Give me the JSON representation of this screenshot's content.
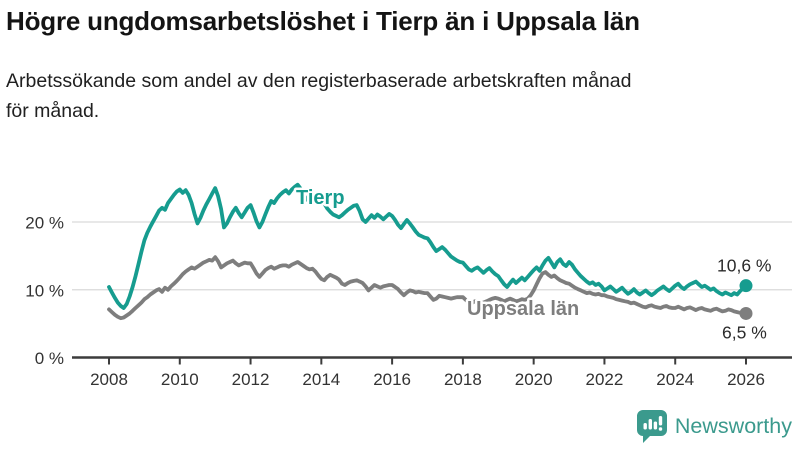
{
  "header": {
    "title": "Högre ungdomsarbetslöshet i Tierp än i Uppsala län",
    "subtitle": "Arbetssökande som andel av den registerbaserade arbetskraften månad\nför månad."
  },
  "chart_data": {
    "type": "line",
    "title": "Högre ungdomsarbetslöshet i Tierp än i Uppsala län",
    "subtitle": "Arbetssökande som andel av den registerbaserade arbetskraften månad för månad.",
    "x_unit": "month",
    "x_start": "2008-01",
    "x_end": "2026-01",
    "xticks": [
      "2008",
      "2010",
      "2012",
      "2014",
      "2016",
      "2018",
      "2020",
      "2022",
      "2024",
      "2026"
    ],
    "yticks": [
      {
        "value": 0,
        "label": "0 %"
      },
      {
        "value": 10,
        "label": "10 %"
      },
      {
        "value": 20,
        "label": "20 %"
      }
    ],
    "ylim": [
      0,
      28
    ],
    "grid": "horizontal",
    "legend_position": "inline-labels",
    "series": [
      {
        "name": "Tierp",
        "color": "#169c8f",
        "end_label": "10,6 %",
        "end_value": 10.6,
        "values": [
          10.4,
          9.6,
          8.8,
          8.1,
          7.6,
          7.3,
          7.9,
          9.0,
          10.4,
          12.0,
          13.8,
          15.6,
          17.3,
          18.4,
          19.3,
          20.1,
          20.9,
          21.7,
          22.1,
          21.8,
          22.8,
          23.4,
          24.0,
          24.5,
          24.8,
          24.3,
          24.7,
          24.0,
          22.8,
          21.2,
          19.8,
          20.6,
          21.7,
          22.6,
          23.4,
          24.2,
          25.0,
          23.8,
          21.9,
          19.2,
          19.8,
          20.7,
          21.5,
          22.1,
          21.3,
          20.7,
          21.4,
          22.1,
          22.5,
          21.4,
          20.1,
          19.2,
          20.0,
          21.1,
          22.2,
          23.1,
          22.8,
          23.5,
          24.0,
          24.4,
          24.7,
          24.2,
          24.8,
          25.2,
          25.5,
          24.9,
          24.0,
          23.3,
          23.8,
          23.3,
          22.8,
          23.2,
          23.4,
          22.7,
          22.0,
          21.5,
          21.1,
          20.9,
          20.7,
          21.0,
          21.4,
          21.8,
          22.1,
          22.4,
          22.5,
          21.6,
          20.4,
          20.0,
          20.5,
          21.0,
          20.6,
          21.1,
          20.8,
          20.4,
          20.8,
          21.2,
          20.9,
          20.3,
          19.6,
          19.1,
          19.7,
          20.3,
          19.8,
          19.2,
          18.6,
          18.1,
          17.9,
          17.7,
          17.6,
          17.0,
          16.3,
          15.7,
          16.0,
          16.3,
          15.9,
          15.4,
          14.9,
          14.6,
          14.3,
          14.1,
          14.0,
          13.5,
          13.0,
          12.8,
          13.1,
          13.3,
          12.9,
          12.5,
          12.9,
          13.2,
          12.7,
          12.3,
          12.0,
          11.4,
          10.8,
          10.4,
          11.0,
          11.5,
          11.0,
          11.4,
          11.8,
          11.4,
          11.9,
          12.4,
          12.9,
          13.3,
          12.8,
          13.6,
          14.3,
          14.7,
          14.0,
          13.3,
          14.1,
          14.5,
          13.8,
          13.5,
          14.1,
          13.7,
          13.0,
          12.5,
          12.0,
          11.6,
          11.2,
          10.9,
          11.1,
          10.7,
          10.9,
          10.5,
          9.9,
          10.2,
          10.5,
          10.1,
          9.7,
          10.0,
          10.3,
          9.8,
          9.4,
          9.7,
          10.1,
          9.6,
          9.3,
          9.6,
          9.9,
          9.5,
          9.2,
          9.5,
          9.9,
          10.2,
          10.5,
          10.1,
          9.8,
          10.2,
          10.6,
          10.9,
          10.4,
          10.1,
          10.5,
          10.8,
          11.0,
          11.2,
          10.8,
          10.4,
          10.6,
          10.3,
          10.0,
          10.2,
          9.8,
          9.5,
          9.3,
          9.6,
          9.4,
          9.2,
          9.5,
          9.3,
          9.8,
          10.2,
          10.6
        ]
      },
      {
        "name": "Uppsala län",
        "color": "#7e7e7e",
        "end_label": "6,5 %",
        "end_value": 6.5,
        "values": [
          7.1,
          6.7,
          6.3,
          6.0,
          5.8,
          5.9,
          6.2,
          6.5,
          6.9,
          7.3,
          7.7,
          8.1,
          8.6,
          8.9,
          9.3,
          9.6,
          9.9,
          10.1,
          9.7,
          10.3,
          10.0,
          10.5,
          10.9,
          11.3,
          11.8,
          12.3,
          12.7,
          13.0,
          13.3,
          13.1,
          13.4,
          13.7,
          14.0,
          14.2,
          14.4,
          14.3,
          14.8,
          14.2,
          13.3,
          13.6,
          13.9,
          14.1,
          14.3,
          13.9,
          13.6,
          13.8,
          14.0,
          13.9,
          13.9,
          13.2,
          12.4,
          11.9,
          12.4,
          12.9,
          13.2,
          13.4,
          13.1,
          13.3,
          13.5,
          13.6,
          13.6,
          13.4,
          13.7,
          13.9,
          14.1,
          13.8,
          13.5,
          13.2,
          13.0,
          13.1,
          12.7,
          12.1,
          11.6,
          11.4,
          11.9,
          12.2,
          12.0,
          11.8,
          11.5,
          10.9,
          10.7,
          11.0,
          11.2,
          11.3,
          11.4,
          11.2,
          11.0,
          10.5,
          9.9,
          10.3,
          10.7,
          10.5,
          10.3,
          10.5,
          10.6,
          10.7,
          10.7,
          10.4,
          10.1,
          9.6,
          9.2,
          9.6,
          9.9,
          9.8,
          9.6,
          9.7,
          9.6,
          9.5,
          9.5,
          9.0,
          8.5,
          8.7,
          9.1,
          9.0,
          8.9,
          8.8,
          8.7,
          8.8,
          8.9,
          8.9,
          8.9,
          8.5,
          8.1,
          8.0,
          8.3,
          8.4,
          8.2,
          8.1,
          8.3,
          8.5,
          8.7,
          8.8,
          8.7,
          8.5,
          8.3,
          8.5,
          8.7,
          8.5,
          8.3,
          8.4,
          8.6,
          8.5,
          8.7,
          9.2,
          9.9,
          10.8,
          11.7,
          12.4,
          12.6,
          12.2,
          11.9,
          12.1,
          11.7,
          11.4,
          11.2,
          11.0,
          10.9,
          10.6,
          10.3,
          10.1,
          9.9,
          9.7,
          9.5,
          9.6,
          9.4,
          9.3,
          9.4,
          9.2,
          9.2,
          9.0,
          8.9,
          8.8,
          8.6,
          8.5,
          8.4,
          8.3,
          8.2,
          8.0,
          8.1,
          7.9,
          7.7,
          7.5,
          7.4,
          7.6,
          7.7,
          7.5,
          7.4,
          7.3,
          7.5,
          7.6,
          7.4,
          7.3,
          7.3,
          7.5,
          7.3,
          7.1,
          7.3,
          7.4,
          7.2,
          7.0,
          7.2,
          7.3,
          7.1,
          7.0,
          6.9,
          7.1,
          7.2,
          7.0,
          6.8,
          6.9,
          7.1,
          7.0,
          6.8,
          6.7,
          6.6,
          6.6,
          6.5
        ]
      }
    ]
  },
  "footer": {
    "brand": "Newsworthy",
    "brand_color": "#3b9a8d"
  }
}
